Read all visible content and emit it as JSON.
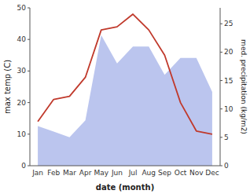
{
  "chart_data": {
    "type": "line",
    "xlabel": "date (month)",
    "ylabel": "max temp (C)",
    "y2label": "med. precipitation (kg/m2)",
    "categories": [
      "Jan",
      "Feb",
      "Mar",
      "Apr",
      "May",
      "Jun",
      "Jul",
      "Aug",
      "Sep",
      "Oct",
      "Nov",
      "Dec"
    ],
    "series": [
      {
        "type": "area",
        "axis": "y2",
        "color": "#bbc5ee",
        "values": [
          7,
          6,
          5,
          8,
          23,
          18,
          21,
          21,
          16,
          19,
          19,
          13
        ]
      },
      {
        "type": "line",
        "color": "#c0392b",
        "values": [
          14,
          21,
          22,
          28,
          43,
          44,
          48,
          43,
          35,
          20,
          11,
          10
        ]
      }
    ],
    "ylim": [
      0,
      50
    ],
    "yticks": [
      0,
      10,
      20,
      30,
      40,
      50
    ],
    "y2lim": [
      0,
      27.8
    ],
    "y2ticks": [
      0,
      5,
      10,
      15,
      20,
      25
    ],
    "grid": false
  }
}
